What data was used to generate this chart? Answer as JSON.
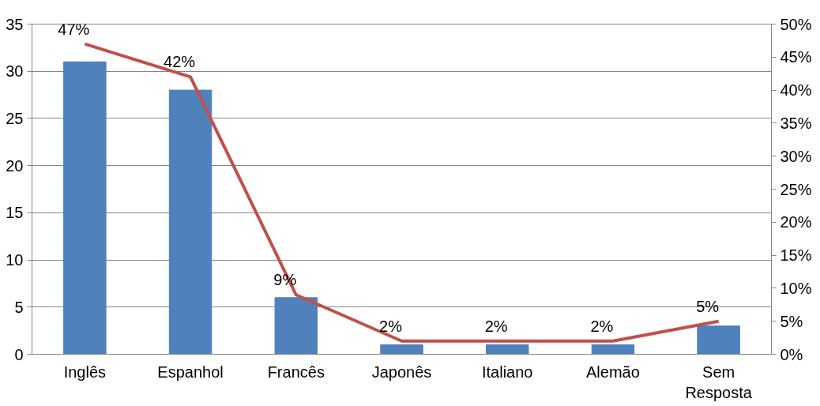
{
  "chart_data": {
    "type": "bar",
    "categories": [
      "Inglês",
      "Espanhol",
      "Francês",
      "Japonês",
      "Italiano",
      "Alemão",
      "Sem\nResposta"
    ],
    "series": [
      {
        "color": "#4f81bd",
        "values": [
          31,
          28,
          6,
          1,
          1,
          1,
          3
        ]
      },
      {
        "type": "line",
        "axis": "y2",
        "color": "#c0504d",
        "values": [
          47,
          42,
          9,
          2,
          2,
          2,
          5
        ],
        "value_labels": [
          "47%",
          "42%",
          "9%",
          "2%",
          "2%",
          "2%",
          "5%"
        ]
      }
    ],
    "ylim": [
      0,
      35
    ],
    "yticks": [
      0,
      5,
      10,
      15,
      20,
      25,
      30,
      35
    ],
    "y2lim": [
      0,
      50
    ],
    "y2ticks": [
      {
        "value": 0,
        "label": "0%"
      },
      {
        "value": 5,
        "label": "5%"
      },
      {
        "value": 10,
        "label": "10%"
      },
      {
        "value": 15,
        "label": "15%"
      },
      {
        "value": 20,
        "label": "20%"
      },
      {
        "value": 25,
        "label": "25%"
      },
      {
        "value": 30,
        "label": "30%"
      },
      {
        "value": 35,
        "label": "35%"
      },
      {
        "value": 40,
        "label": "40%"
      },
      {
        "value": 45,
        "label": "45%"
      },
      {
        "value": 50,
        "label": "50%"
      }
    ],
    "grid": "y"
  }
}
